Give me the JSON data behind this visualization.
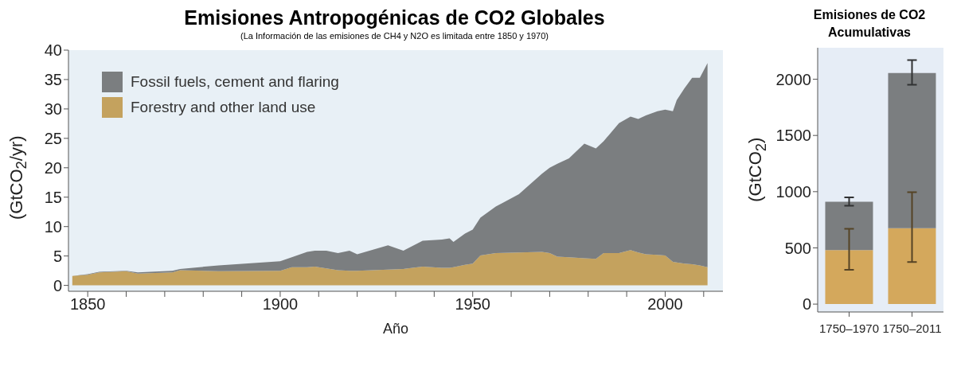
{
  "chart_data": [
    {
      "type": "area",
      "title": "Emisiones Antropogénicas de CO2 Globales",
      "subtitle": "(La Información de las emisiones de CH4 y N2O es limitada entre 1850 y 1970)",
      "xlabel": "Año",
      "ylabel": "(GtCO$_{2}$/yr)",
      "stacked": true,
      "legend": "top left",
      "x": [
        1846,
        1850,
        1853,
        1860,
        1863,
        1872,
        1874,
        1884,
        1900,
        1903,
        1907,
        1909,
        1912,
        1915,
        1918,
        1920,
        1928,
        1932,
        1937,
        1942,
        1944,
        1945,
        1948,
        1950,
        1952,
        1956,
        1962,
        1968,
        1970,
        1972,
        1975,
        1979,
        1982,
        1984,
        1988,
        1991,
        1993,
        1995,
        1998,
        2000,
        2002,
        2003,
        2005,
        2007,
        2009,
        2011
      ],
      "series": [
        {
          "name": "Forestry and other land use",
          "color": "#c4a25e",
          "values": [
            1.6,
            1.8,
            2.2,
            2.4,
            2.0,
            2.2,
            2.6,
            2.4,
            2.5,
            3.1,
            3.1,
            3.2,
            2.9,
            2.6,
            2.5,
            2.5,
            2.7,
            2.8,
            3.2,
            3.0,
            3.0,
            3.1,
            3.5,
            3.7,
            5.1,
            5.5,
            5.6,
            5.7,
            5.5,
            4.9,
            4.8,
            4.6,
            4.5,
            5.5,
            5.5,
            6.0,
            5.6,
            5.3,
            5.2,
            5.1,
            4.0,
            3.9,
            3.7,
            3.6,
            3.4,
            3.1
          ]
        },
        {
          "name": "Fossil fuels, cement and flaring",
          "color": "#7b7e80",
          "values": [
            0.0,
            0.1,
            0.1,
            0.1,
            0.2,
            0.3,
            0.2,
            1.0,
            1.6,
            1.7,
            2.6,
            2.7,
            3.0,
            2.9,
            3.4,
            2.8,
            4.1,
            3.1,
            4.4,
            4.8,
            5.0,
            4.3,
            5.3,
            5.8,
            6.4,
            7.9,
            9.9,
            13.3,
            14.5,
            15.8,
            16.8,
            19.5,
            18.8,
            19.0,
            22.1,
            22.7,
            22.7,
            23.6,
            24.4,
            24.8,
            25.6,
            27.6,
            29.8,
            31.7,
            31.9,
            34.7
          ]
        }
      ],
      "xlim": [
        1845,
        2015
      ],
      "xticks": [
        1850,
        {
          "value": 1860,
          "label": null
        },
        {
          "value": 1870,
          "label": null
        },
        {
          "value": 1880,
          "label": null
        },
        {
          "value": 1890,
          "label": null
        },
        1900,
        {
          "value": 1910,
          "label": null
        },
        {
          "value": 1920,
          "label": null
        },
        {
          "value": 1930,
          "label": null
        },
        {
          "value": 1940,
          "label": null
        },
        1950,
        {
          "value": 1960,
          "label": null
        },
        {
          "value": 1970,
          "label": null
        },
        {
          "value": 1980,
          "label": null
        },
        {
          "value": 1990,
          "label": null
        },
        2000,
        {
          "value": 2010,
          "label": null
        }
      ],
      "ylim": [
        -1,
        40
      ],
      "yticks": [
        0,
        5,
        10,
        15,
        20,
        25,
        30,
        35,
        40
      ]
    },
    {
      "type": "bar",
      "title": "Emisiones de CO2 Acumulativas",
      "ylabel": "(GtCO$_{2}$)",
      "stacked": true,
      "categories": [
        "1750–1970",
        "1750–2011"
      ],
      "series": [
        {
          "color": "#d4a85c",
          "values": [
            480,
            675
          ],
          "errors": [
            [
              305,
              670
            ],
            [
              375,
              995
            ]
          ]
        },
        {
          "color": "#7b7e80",
          "values": [
            430,
            1380
          ],
          "errors": [
            [
              875,
              950
            ],
            [
              1950,
              2170
            ]
          ]
        }
      ],
      "ylim": [
        -70,
        2280
      ],
      "yticks": [
        0,
        500,
        1000,
        1500,
        2000
      ]
    }
  ]
}
